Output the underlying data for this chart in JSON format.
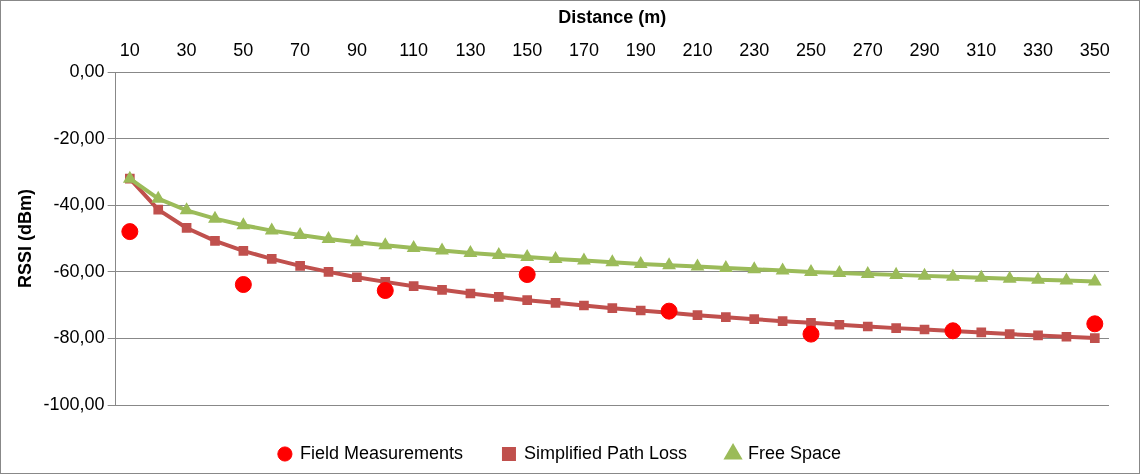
{
  "chart_data": {
    "type": "line",
    "xlabel": "Distance (m)",
    "ylabel": "RSSI (dBm)",
    "categories": [
      "10",
      null,
      "30",
      null,
      "50",
      null,
      "70",
      null,
      "90",
      null,
      "110",
      null,
      "130",
      null,
      "150",
      null,
      "170",
      null,
      "190",
      null,
      "210",
      null,
      "230",
      null,
      "250",
      null,
      "270",
      null,
      "290",
      null,
      "310",
      null,
      "330",
      null,
      "350"
    ],
    "ylim": [
      -100,
      0
    ],
    "yticks": [
      {
        "value": 0,
        "label": "0,00"
      },
      {
        "value": -20,
        "label": "-20,00"
      },
      {
        "value": -40,
        "label": "-40,00"
      },
      {
        "value": -60,
        "label": "-60,00"
      },
      {
        "value": -80,
        "label": "-80,00"
      },
      {
        "value": -100,
        "label": "-100,00"
      }
    ],
    "grid": "y",
    "legend": "bottom",
    "series": [
      {
        "name": "Field Measurements",
        "type": "scatter",
        "marker": "circle",
        "color": "#ff0000",
        "values": [
          -47.9,
          null,
          null,
          null,
          -63.8,
          null,
          null,
          null,
          null,
          -65.6,
          null,
          null,
          null,
          null,
          -60.8,
          null,
          null,
          null,
          null,
          -71.8,
          null,
          null,
          null,
          null,
          -78.7,
          null,
          null,
          null,
          null,
          -77.7,
          null,
          null,
          null,
          null,
          -75.6
        ]
      },
      {
        "name": "Simplified Path Loss",
        "type": "line",
        "marker": "square",
        "color": "#c0504d",
        "values": [
          -32,
          -41.3,
          -46.8,
          -50.7,
          -53.7,
          -56.1,
          -58.2,
          -60.0,
          -61.6,
          -63.0,
          -64.3,
          -65.4,
          -66.5,
          -67.5,
          -68.5,
          -69.3,
          -70.1,
          -70.9,
          -71.6,
          -72.3,
          -73.0,
          -73.6,
          -74.2,
          -74.8,
          -75.3,
          -75.9,
          -76.4,
          -76.9,
          -77.3,
          -77.8,
          -78.2,
          -78.7,
          -79.1,
          -79.5,
          -79.9
        ]
      },
      {
        "name": "Free Space",
        "type": "line",
        "marker": "triangle",
        "color": "#9bbb59",
        "values": [
          -32,
          -38.0,
          -41.5,
          -44.0,
          -46.0,
          -47.6,
          -48.9,
          -50.1,
          -51.1,
          -52.0,
          -52.8,
          -53.6,
          -54.3,
          -54.9,
          -55.5,
          -56.1,
          -56.6,
          -57.1,
          -57.6,
          -58.0,
          -58.4,
          -58.8,
          -59.2,
          -59.6,
          -60.0,
          -60.3,
          -60.6,
          -60.9,
          -61.2,
          -61.5,
          -61.8,
          -62.1,
          -62.4,
          -62.6,
          -62.9
        ]
      }
    ]
  }
}
